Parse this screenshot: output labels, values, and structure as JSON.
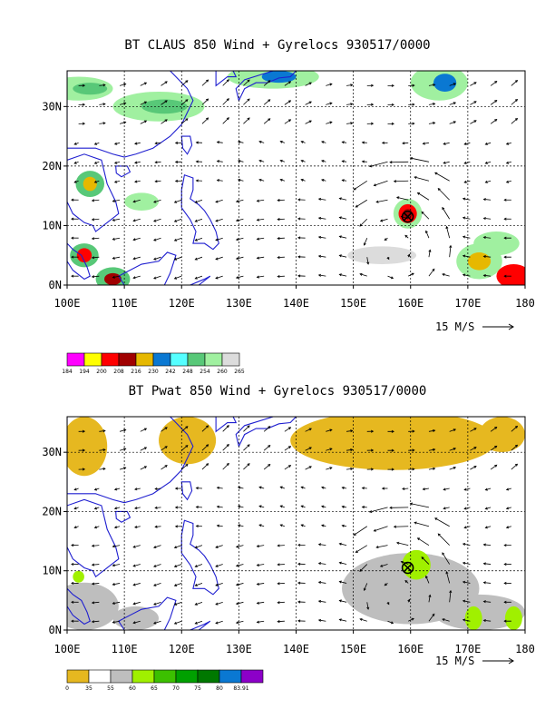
{
  "chart_data": [
    {
      "type": "vector-field",
      "title": "BT CLAUS 850 Wind + Gyrelocs 930517/0000",
      "x_ticks": [
        "100E",
        "110E",
        "120E",
        "130E",
        "140E",
        "150E",
        "160E",
        "170E",
        "180"
      ],
      "y_ticks": [
        "0N",
        "10N",
        "20N",
        "30N"
      ],
      "xlim": [
        100,
        180
      ],
      "ylim": [
        0,
        36
      ],
      "grid": true,
      "vector_scale_label": "15 M/S",
      "colorbar": {
        "labels": [
          "184",
          "194",
          "200",
          "208",
          "216",
          "230",
          "242",
          "248",
          "254",
          "260",
          "265"
        ],
        "colors": [
          "#ff00ff",
          "#ffff00",
          "#ff0000",
          "#a00000",
          "#e6b800",
          "#0a78d2",
          "#55ffff",
          "#58c878",
          "#a0f0a0",
          "#dcdcdc"
        ]
      },
      "gyre_loc": {
        "lon": 159.5,
        "lat": 11.5
      }
    },
    {
      "type": "vector-field",
      "title": "BT Pwat 850 Wind + Gyrelocs 930517/0000",
      "x_ticks": [
        "100E",
        "110E",
        "120E",
        "130E",
        "140E",
        "150E",
        "160E",
        "170E",
        "180"
      ],
      "y_ticks": [
        "0N",
        "10N",
        "20N",
        "30N"
      ],
      "xlim": [
        100,
        180
      ],
      "ylim": [
        0,
        36
      ],
      "grid": true,
      "vector_scale_label": "15 M/S",
      "colorbar": {
        "labels": [
          "0",
          "35",
          "55",
          "60",
          "65",
          "70",
          "75",
          "80",
          "83.91"
        ],
        "colors": [
          "#e6b820",
          "#ffffff",
          "#bebebe",
          "#a0f000",
          "#3cc000",
          "#00a000",
          "#007800",
          "#0a78d2",
          "#8c00c8"
        ]
      },
      "gyre_loc": {
        "lon": 159.5,
        "lat": 10.5
      }
    }
  ]
}
